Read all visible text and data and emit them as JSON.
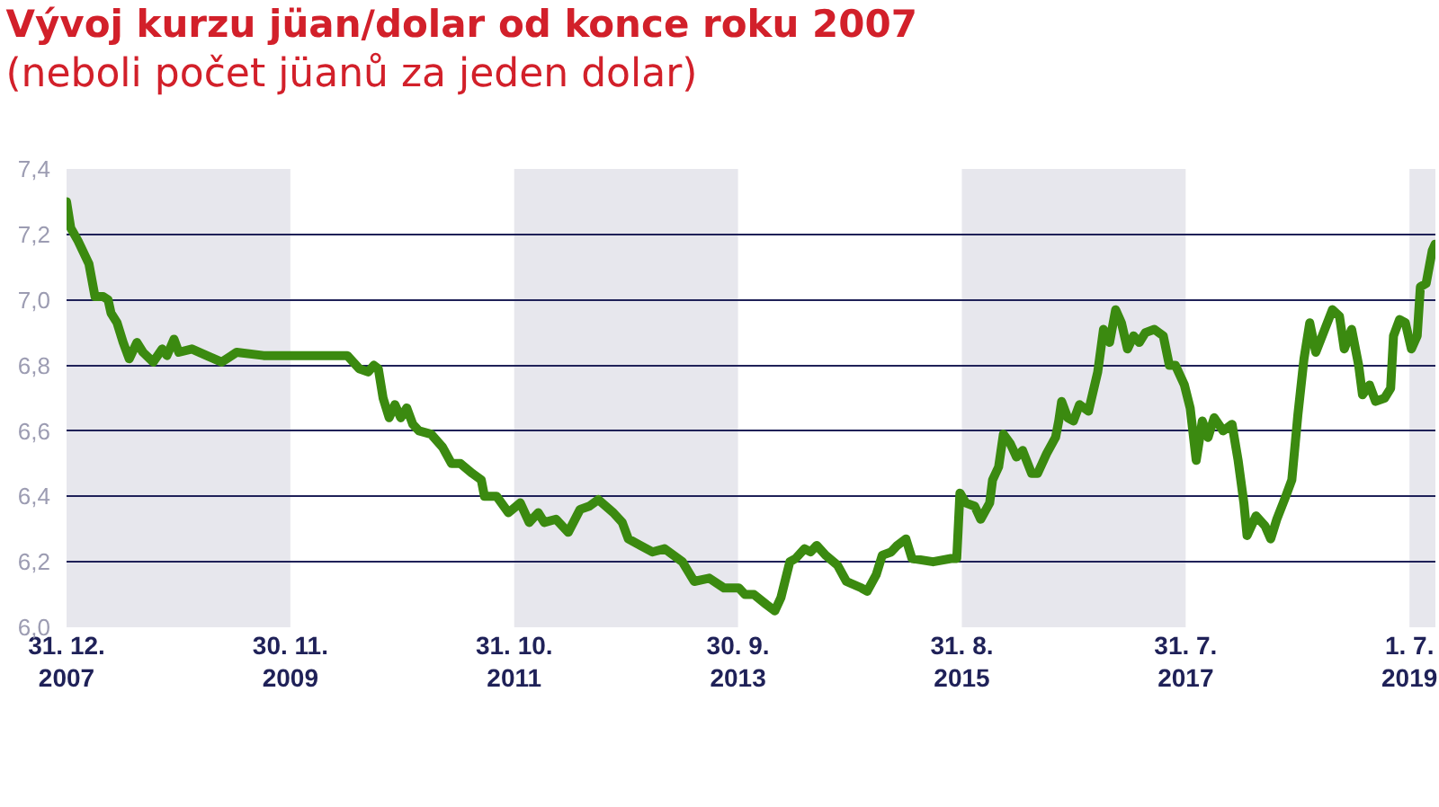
{
  "chart_data": {
    "type": "line",
    "title": "Vývoj kurzu jüan/dolar od konce roku 2007",
    "subtitle": "(neboli počet jüanů za jeden dolar)",
    "x": [
      "2007-12-31",
      "2008-01-13",
      "2008-02-05",
      "2008-03-10",
      "2008-03-29",
      "2008-04-24",
      "2008-05-09",
      "2008-05-18",
      "2008-06-06",
      "2008-06-25",
      "2008-07-14",
      "2008-08-07",
      "2008-08-26",
      "2008-09-27",
      "2008-10-25",
      "2008-11-09",
      "2008-12-01",
      "2008-12-16",
      "2009-01-26",
      "2009-03-13",
      "2009-04-29",
      "2009-06-15",
      "2009-09-07",
      "2010-02-04",
      "2010-05-27",
      "2010-07-03",
      "2010-07-31",
      "2010-08-18",
      "2010-09-01",
      "2010-09-16",
      "2010-10-05",
      "2010-10-23",
      "2010-11-10",
      "2010-11-29",
      "2010-12-18",
      "2011-01-06",
      "2011-02-13",
      "2011-03-21",
      "2011-04-18",
      "2011-05-16",
      "2011-06-22",
      "2011-07-20",
      "2011-07-30",
      "2011-09-06",
      "2011-10-13",
      "2011-11-19",
      "2011-12-17",
      "2012-01-14",
      "2012-02-02",
      "2012-03-10",
      "2012-04-17",
      "2012-05-24",
      "2012-06-22",
      "2012-07-20",
      "2012-09-05",
      "2012-10-03",
      "2012-10-22",
      "2012-11-28",
      "2013-01-05",
      "2013-02-12",
      "2013-04-09",
      "2013-05-16",
      "2013-07-02",
      "2013-08-17",
      "2013-10-03",
      "2013-10-22",
      "2013-11-19",
      "2013-12-27",
      "2014-01-23",
      "2014-02-11",
      "2014-03-11",
      "2014-03-29",
      "2014-04-26",
      "2014-05-15",
      "2014-06-03",
      "2014-07-01",
      "2014-08-07",
      "2014-09-04",
      "2014-10-21",
      "2014-11-08",
      "2014-12-06",
      "2014-12-25",
      "2015-01-22",
      "2015-02-10",
      "2015-03-09",
      "2015-03-28",
      "2015-06-02",
      "2015-07-28",
      "2015-08-15",
      "2015-08-25",
      "2015-09-12",
      "2015-10-10",
      "2015-10-29",
      "2015-11-26",
      "2015-12-05",
      "2015-12-24",
      "2016-01-08",
      "2016-01-30",
      "2016-02-18",
      "2016-03-08",
      "2016-04-05",
      "2016-04-24",
      "2016-05-22",
      "2016-06-19",
      "2016-06-29",
      "2016-07-08",
      "2016-07-27",
      "2016-08-14",
      "2016-09-02",
      "2016-09-30",
      "2016-10-29",
      "2016-11-16",
      "2016-12-05",
      "2016-12-24",
      "2017-01-11",
      "2017-01-30",
      "2017-02-18",
      "2017-03-08",
      "2017-03-27",
      "2017-04-24",
      "2017-05-22",
      "2017-06-10",
      "2017-06-29",
      "2017-07-27",
      "2017-08-14",
      "2017-09-02",
      "2017-09-21",
      "2017-10-09",
      "2017-10-28",
      "2017-11-25",
      "2017-12-23",
      "2018-01-11",
      "2018-01-29",
      "2018-02-08",
      "2018-03-08",
      "2018-04-05",
      "2018-04-23",
      "2018-05-12",
      "2018-06-09",
      "2018-06-28",
      "2018-07-17",
      "2018-08-05",
      "2018-08-23",
      "2018-09-11",
      "2018-10-09",
      "2018-11-02",
      "2018-11-24",
      "2018-12-09",
      "2019-01-01",
      "2019-01-23",
      "2019-02-04",
      "2019-02-26",
      "2019-03-17",
      "2019-04-14",
      "2019-05-03",
      "2019-05-12",
      "2019-05-31",
      "2019-06-18",
      "2019-07-07",
      "2019-07-25",
      "2019-08-04",
      "2019-08-22",
      "2019-09-10",
      "2019-09-19"
    ],
    "values": [
      7.3,
      7.22,
      7.18,
      7.11,
      7.01,
      7.01,
      7.0,
      6.96,
      6.93,
      6.87,
      6.82,
      6.87,
      6.84,
      6.81,
      6.85,
      6.83,
      6.88,
      6.84,
      6.85,
      6.83,
      6.81,
      6.84,
      6.83,
      6.83,
      6.83,
      6.79,
      6.78,
      6.8,
      6.79,
      6.7,
      6.64,
      6.68,
      6.64,
      6.67,
      6.62,
      6.6,
      6.59,
      6.55,
      6.5,
      6.5,
      6.47,
      6.45,
      6.4,
      6.4,
      6.35,
      6.38,
      6.32,
      6.35,
      6.32,
      6.33,
      6.29,
      6.36,
      6.37,
      6.39,
      6.35,
      6.32,
      6.27,
      6.25,
      6.23,
      6.24,
      6.2,
      6.14,
      6.15,
      6.12,
      6.12,
      6.1,
      6.1,
      6.07,
      6.05,
      6.09,
      6.2,
      6.21,
      6.24,
      6.23,
      6.25,
      6.22,
      6.19,
      6.14,
      6.12,
      6.11,
      6.16,
      6.22,
      6.23,
      6.25,
      6.27,
      6.21,
      6.2,
      6.21,
      6.21,
      6.41,
      6.38,
      6.37,
      6.33,
      6.38,
      6.45,
      6.49,
      6.59,
      6.56,
      6.52,
      6.54,
      6.47,
      6.47,
      6.53,
      6.58,
      6.63,
      6.69,
      6.64,
      6.63,
      6.68,
      6.66,
      6.78,
      6.91,
      6.87,
      6.97,
      6.93,
      6.85,
      6.89,
      6.87,
      6.9,
      6.91,
      6.89,
      6.8,
      6.8,
      6.74,
      6.67,
      6.51,
      6.63,
      6.58,
      6.64,
      6.6,
      6.62,
      6.51,
      6.38,
      6.28,
      6.34,
      6.31,
      6.27,
      6.33,
      6.4,
      6.45,
      6.65,
      6.82,
      6.93,
      6.84,
      6.91,
      6.97,
      6.95,
      6.85,
      6.91,
      6.8,
      6.71,
      6.74,
      6.69,
      6.7,
      6.73,
      6.89,
      6.94,
      6.93,
      6.85,
      6.89,
      7.04,
      7.05,
      7.15,
      7.17
    ],
    "color": "#3b8a10",
    "line_style": "solid",
    "xlim": [
      "2007-12-31",
      "2019-09-20"
    ],
    "xticks": [
      {
        "value": "2007-12-31",
        "label": "31. 12.\n2007"
      },
      {
        "value": "2009-11-30",
        "label": "30. 11.\n2009"
      },
      {
        "value": "2011-10-31",
        "label": "31. 10.\n2011"
      },
      {
        "value": "2013-09-30",
        "label": "30. 9.\n2013"
      },
      {
        "value": "2015-08-31",
        "label": "31. 8.\n2015"
      },
      {
        "value": "2017-07-31",
        "label": "31. 7.\n2017"
      },
      {
        "value": "2019-07-01",
        "label": "1. 7.\n2019"
      }
    ],
    "ylim": [
      6.0,
      7.4
    ],
    "yticks": [
      {
        "value": 6.0,
        "label": "6,0"
      },
      {
        "value": 6.2,
        "label": "6,2"
      },
      {
        "value": 6.4,
        "label": "6,4"
      },
      {
        "value": 6.6,
        "label": "6,6"
      },
      {
        "value": 6.8,
        "label": "6,8"
      },
      {
        "value": 7.0,
        "label": "7,0"
      },
      {
        "value": 7.2,
        "label": "7,2"
      },
      {
        "value": 7.4,
        "label": "7,4"
      }
    ],
    "grid": "y",
    "bands": [
      {
        "axis": "x",
        "from": "2007-12-31",
        "to": "2009-11-30",
        "color": "#e7e7ed"
      },
      {
        "axis": "x",
        "from": "2011-10-31",
        "to": "2013-09-30",
        "color": "#e7e7ed"
      },
      {
        "axis": "x",
        "from": "2015-08-31",
        "to": "2017-07-31",
        "color": "#e7e7ed"
      },
      {
        "axis": "x",
        "from": "2019-07-01",
        "to": "2019-09-20",
        "color": "#e7e7ed"
      }
    ]
  }
}
